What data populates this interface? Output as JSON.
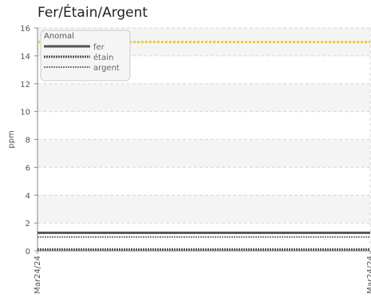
{
  "chart_data": {
    "type": "line",
    "title": "Fer/Étain/Argent",
    "ylabel": "ppm",
    "xlabel": "",
    "ylim": [
      0,
      16
    ],
    "yticks": [
      0,
      2,
      4,
      6,
      8,
      10,
      12,
      14,
      16
    ],
    "x": [
      "Mar24/24",
      "Mar24/24"
    ],
    "grid": true,
    "legend_position": "top-left",
    "series": [
      {
        "name": "fer",
        "values": [
          1.3,
          1.3
        ],
        "color": "#555555",
        "style": "solid"
      },
      {
        "name": "étain",
        "values": [
          0.1,
          0.1
        ],
        "color": "#555555",
        "style": "dashed-thick"
      },
      {
        "name": "argent",
        "values": [
          1.0,
          1.0
        ],
        "color": "#555555",
        "style": "dashed"
      }
    ],
    "annotations": [
      {
        "label": "Anomal",
        "value": 15,
        "color": "#f0c419",
        "style": "dotted"
      }
    ]
  }
}
